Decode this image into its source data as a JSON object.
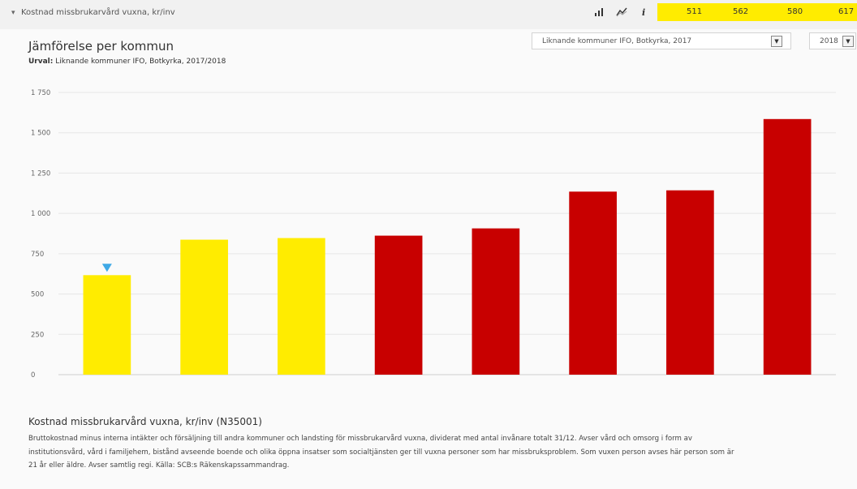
{
  "header": {
    "kpi_title": "Kostnad missbrukarvård vuxna, kr/inv",
    "tools": {
      "bar_chart": "bar-chart-icon",
      "trend": "trend-icon",
      "info": "i"
    },
    "kpi_values": [
      "511",
      "562",
      "580",
      "617"
    ],
    "highlight_color": "#ffec00"
  },
  "panel": {
    "title": "Jämförelse per kommun",
    "selection_label": "Urval:",
    "selection_value": "Liknande kommuner IFO, Botkyrka, 2017/2018",
    "group_select": "Liknande kommuner IFO, Botkyrka, 2017",
    "year_select": "2018"
  },
  "chart_data": {
    "type": "bar",
    "ylim": [
      0,
      1750
    ],
    "yticks": [
      "0",
      "250",
      "500",
      "750",
      "1 000",
      "1 250",
      "1 500",
      "1 750"
    ],
    "values": [
      617,
      837,
      847,
      862,
      907,
      1135,
      1143,
      1585
    ],
    "colors": [
      "#ffec00",
      "#ffec00",
      "#ffec00",
      "#c80000",
      "#c80000",
      "#c80000",
      "#c80000",
      "#c80000"
    ],
    "marker_index": 0,
    "marker_color": "#3fa9e6",
    "grid": true
  },
  "description": {
    "title": "Kostnad missbrukarvård vuxna, kr/inv (N35001)",
    "lines": [
      "Bruttokostnad minus interna intäkter och försäljning till andra kommuner och landsting för missbrukarvård vuxna, dividerat med antal invånare totalt 31/12. Avser vård och omsorg i form av",
      "institutionsvård, vård i familjehem, bistånd avseende boende och olika öppna insatser som socialtjänsten ger till vuxna personer som har missbruksproblem. Som vuxen person avses här person som är",
      "21 år eller äldre. Avser samtlig regi. Källa: SCB:s Räkenskapssammandrag."
    ]
  }
}
